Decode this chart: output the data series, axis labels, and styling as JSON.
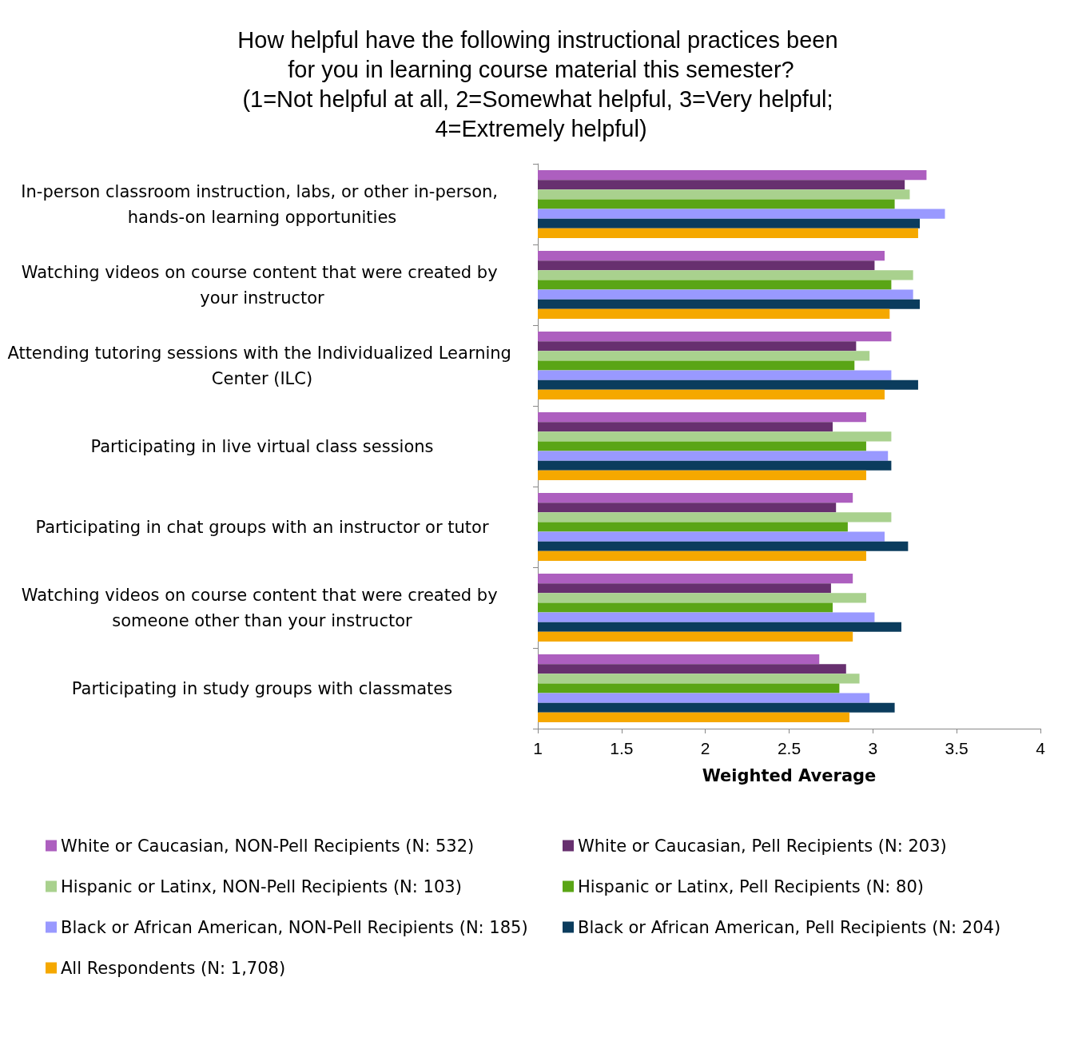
{
  "chart_data": {
    "type": "bar",
    "orientation": "horizontal",
    "title": "How helpful have the following instructional practices been for you in learning course material this semester?\n(1=Not helpful at all, 2=Somewhat helpful, 3=Very helpful; 4=Extremely helpful)",
    "xlabel": "Weighted Average",
    "categories": [
      "In-person classroom instruction, labs, or other in-person, hands-on learning opportunities",
      "Watching videos on course content that were created by your instructor",
      "Attending tutoring sessions with the Individualized Learning Center (ILC)",
      "Participating in live virtual class sessions",
      "Participating in chat groups with an instructor or tutor",
      "Watching videos on course content that were created by someone other than your instructor",
      "Participating in study groups with classmates"
    ],
    "xlim": [
      1,
      4
    ],
    "xticks": [
      1,
      1.5,
      2,
      2.5,
      3,
      3.5,
      4
    ],
    "grid": false,
    "legend": "bottom",
    "series": [
      {
        "name": "White or Caucasian, NON-Pell Recipients (N: 532)",
        "color": "#ad5fbf",
        "values": [
          3.32,
          3.07,
          3.11,
          2.96,
          2.88,
          2.88,
          2.68
        ]
      },
      {
        "name": "White or Caucasian, Pell Recipients (N: 203)",
        "color": "#67306f",
        "values": [
          3.19,
          3.01,
          2.9,
          2.76,
          2.78,
          2.75,
          2.84
        ]
      },
      {
        "name": "Hispanic or Latinx, NON-Pell Recipients (N: 103)",
        "color": "#a9d18e",
        "values": [
          3.22,
          3.24,
          2.98,
          3.11,
          3.11,
          2.96,
          2.92
        ]
      },
      {
        "name": "Hispanic or Latinx, Pell Recipients (N: 80)",
        "color": "#5aa516",
        "values": [
          3.13,
          3.11,
          2.89,
          2.96,
          2.85,
          2.76,
          2.8
        ]
      },
      {
        "name": "Black or African American, NON-Pell Recipients (N: 185)",
        "color": "#9999ff",
        "values": [
          3.43,
          3.24,
          3.11,
          3.09,
          3.07,
          3.01,
          2.98
        ]
      },
      {
        "name": "Black or African American, Pell Recipients (N: 204)",
        "color": "#0b3c5d",
        "values": [
          3.28,
          3.28,
          3.27,
          3.11,
          3.21,
          3.17,
          3.13
        ]
      },
      {
        "name": "All Respondents (N: 1,708)",
        "color": "#f5a800",
        "values": [
          3.27,
          3.1,
          3.07,
          2.96,
          2.96,
          2.88,
          2.86
        ]
      }
    ]
  }
}
